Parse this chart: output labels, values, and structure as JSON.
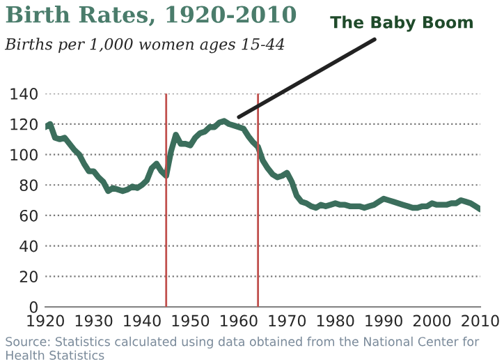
{
  "chart_data": {
    "type": "line",
    "title": "Birth Rates, 1920-2010",
    "subtitle": "Births per 1,000 women ages 15-44",
    "x": [
      1920,
      1921,
      1922,
      1923,
      1924,
      1925,
      1926,
      1927,
      1928,
      1929,
      1930,
      1931,
      1932,
      1933,
      1934,
      1935,
      1936,
      1937,
      1938,
      1939,
      1940,
      1941,
      1942,
      1943,
      1944,
      1945,
      1946,
      1947,
      1948,
      1949,
      1950,
      1951,
      1952,
      1953,
      1954,
      1955,
      1956,
      1957,
      1958,
      1959,
      1960,
      1961,
      1962,
      1963,
      1964,
      1965,
      1966,
      1967,
      1968,
      1969,
      1970,
      1971,
      1972,
      1973,
      1974,
      1975,
      1976,
      1977,
      1978,
      1979,
      1980,
      1981,
      1982,
      1983,
      1984,
      1985,
      1986,
      1987,
      1988,
      1989,
      1990,
      1991,
      1992,
      1993,
      1994,
      1995,
      1996,
      1997,
      1998,
      1999,
      2000,
      2001,
      2002,
      2003,
      2004,
      2005,
      2006,
      2007,
      2008,
      2009,
      2010
    ],
    "series": [
      {
        "color": "#3b6e5c",
        "values": [
          118,
          120,
          111,
          110,
          111,
          107,
          103,
          100,
          94,
          89,
          89,
          85,
          82,
          76,
          78,
          77,
          76,
          77,
          79,
          78,
          80,
          83,
          91,
          94,
          89,
          86,
          102,
          113,
          107,
          107,
          106,
          111,
          114,
          115,
          118,
          118,
          121,
          122,
          120,
          119,
          118,
          117,
          112,
          108,
          105,
          96,
          91,
          87,
          85,
          86,
          88,
          82,
          73,
          69,
          68,
          66,
          65,
          67,
          66,
          67,
          68,
          67,
          67,
          66,
          66,
          66,
          65,
          66,
          67,
          69,
          71,
          70,
          69,
          68,
          67,
          66,
          65,
          65,
          66,
          66,
          68,
          67,
          67,
          67,
          68,
          68,
          70,
          69,
          68,
          66,
          64
        ]
      }
    ],
    "xlim": [
      1920,
      2010
    ],
    "xticks": [
      1920,
      1930,
      1940,
      1950,
      1960,
      1970,
      1980,
      1990,
      2000,
      2010
    ],
    "ylim": [
      0,
      140
    ],
    "yticks": [
      0,
      20,
      40,
      60,
      80,
      100,
      120,
      140
    ],
    "grid": "y",
    "legend": false,
    "marker": "none",
    "line_style": "solid",
    "ref_lines": [
      {
        "axis": "x",
        "value": 1945,
        "color": "#c0504d"
      },
      {
        "axis": "x",
        "value": 1964,
        "color": "#c0504d"
      }
    ],
    "annotations": [
      "The Baby Boom",
      "Source: Statistics calculated using data obtained from the National Center for Health Statistics"
    ]
  }
}
